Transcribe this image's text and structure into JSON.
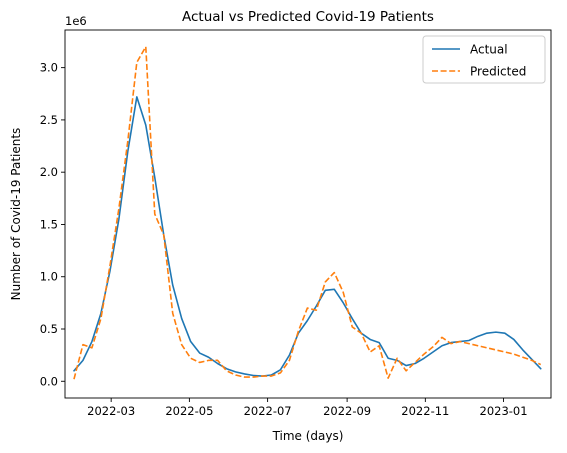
{
  "chart_data": {
    "type": "line",
    "title": "Actual vs Predicted Covid-19 Patients",
    "xlabel": "Time (days)",
    "ylabel": "Number of Covid-19 Patients",
    "y_scale_label": "1e6",
    "xlim": [
      "2022-01-24",
      "2023-02-07"
    ],
    "ylim": [
      -0.16,
      3.36
    ],
    "x_ticks": [
      "2022-03",
      "2022-05",
      "2022-07",
      "2022-09",
      "2022-11",
      "2023-01"
    ],
    "x_tick_dates": [
      "2022-03-01",
      "2022-05-01",
      "2022-07-01",
      "2022-09-01",
      "2022-11-01",
      "2023-01-01"
    ],
    "y_ticks": [
      "0.0",
      "0.5",
      "1.0",
      "1.5",
      "2.0",
      "2.5",
      "3.0"
    ],
    "y_tick_values": [
      0,
      0.5,
      1.0,
      1.5,
      2.0,
      2.5,
      3.0
    ],
    "grid": false,
    "legend_position": "top-right",
    "series": [
      {
        "name": "Actual",
        "color": "#1f77b4",
        "style": "solid",
        "points": [
          [
            "2022-01-31",
            0.1
          ],
          [
            "2022-02-07",
            0.2
          ],
          [
            "2022-02-14",
            0.38
          ],
          [
            "2022-02-21",
            0.65
          ],
          [
            "2022-02-28",
            1.05
          ],
          [
            "2022-03-07",
            1.55
          ],
          [
            "2022-03-14",
            2.2
          ],
          [
            "2022-03-21",
            2.72
          ],
          [
            "2022-03-28",
            2.45
          ],
          [
            "2022-04-04",
            1.95
          ],
          [
            "2022-04-11",
            1.4
          ],
          [
            "2022-04-18",
            0.92
          ],
          [
            "2022-04-25",
            0.6
          ],
          [
            "2022-05-02",
            0.38
          ],
          [
            "2022-05-09",
            0.27
          ],
          [
            "2022-05-16",
            0.23
          ],
          [
            "2022-05-23",
            0.17
          ],
          [
            "2022-05-30",
            0.12
          ],
          [
            "2022-06-06",
            0.09
          ],
          [
            "2022-06-13",
            0.07
          ],
          [
            "2022-06-20",
            0.055
          ],
          [
            "2022-06-27",
            0.05
          ],
          [
            "2022-07-04",
            0.06
          ],
          [
            "2022-07-11",
            0.11
          ],
          [
            "2022-07-18",
            0.25
          ],
          [
            "2022-07-25",
            0.46
          ],
          [
            "2022-08-01",
            0.58
          ],
          [
            "2022-08-08",
            0.72
          ],
          [
            "2022-08-15",
            0.87
          ],
          [
            "2022-08-22",
            0.88
          ],
          [
            "2022-08-29",
            0.75
          ],
          [
            "2022-09-05",
            0.6
          ],
          [
            "2022-09-12",
            0.46
          ],
          [
            "2022-09-19",
            0.4
          ],
          [
            "2022-09-26",
            0.37
          ],
          [
            "2022-10-03",
            0.22
          ],
          [
            "2022-10-10",
            0.2
          ],
          [
            "2022-10-17",
            0.15
          ],
          [
            "2022-10-24",
            0.17
          ],
          [
            "2022-10-31",
            0.22
          ],
          [
            "2022-11-07",
            0.28
          ],
          [
            "2022-11-14",
            0.34
          ],
          [
            "2022-11-21",
            0.37
          ],
          [
            "2022-11-28",
            0.38
          ],
          [
            "2022-12-05",
            0.39
          ],
          [
            "2022-12-12",
            0.43
          ],
          [
            "2022-12-19",
            0.46
          ],
          [
            "2022-12-26",
            0.47
          ],
          [
            "2023-01-02",
            0.46
          ],
          [
            "2023-01-09",
            0.4
          ],
          [
            "2023-01-16",
            0.3
          ],
          [
            "2023-01-23",
            0.21
          ],
          [
            "2023-01-30",
            0.12
          ]
        ]
      },
      {
        "name": "Predicted",
        "color": "#ff7f0e",
        "style": "dashed",
        "points": [
          [
            "2022-01-31",
            0.02
          ],
          [
            "2022-02-07",
            0.35
          ],
          [
            "2022-02-14",
            0.32
          ],
          [
            "2022-02-21",
            0.6
          ],
          [
            "2022-02-28",
            1.1
          ],
          [
            "2022-03-07",
            1.65
          ],
          [
            "2022-03-14",
            2.3
          ],
          [
            "2022-03-21",
            3.05
          ],
          [
            "2022-03-28",
            3.2
          ],
          [
            "2022-04-04",
            1.6
          ],
          [
            "2022-04-11",
            1.4
          ],
          [
            "2022-04-18",
            0.65
          ],
          [
            "2022-04-25",
            0.35
          ],
          [
            "2022-05-02",
            0.22
          ],
          [
            "2022-05-09",
            0.18
          ],
          [
            "2022-05-16",
            0.2
          ],
          [
            "2022-05-23",
            0.2
          ],
          [
            "2022-05-30",
            0.1
          ],
          [
            "2022-06-06",
            0.06
          ],
          [
            "2022-06-13",
            0.04
          ],
          [
            "2022-06-20",
            0.04
          ],
          [
            "2022-06-27",
            0.05
          ],
          [
            "2022-07-04",
            0.05
          ],
          [
            "2022-07-11",
            0.08
          ],
          [
            "2022-07-18",
            0.2
          ],
          [
            "2022-07-25",
            0.48
          ],
          [
            "2022-08-01",
            0.7
          ],
          [
            "2022-08-08",
            0.68
          ],
          [
            "2022-08-15",
            0.95
          ],
          [
            "2022-08-22",
            1.04
          ],
          [
            "2022-08-29",
            0.85
          ],
          [
            "2022-09-05",
            0.52
          ],
          [
            "2022-09-12",
            0.46
          ],
          [
            "2022-09-19",
            0.28
          ],
          [
            "2022-09-26",
            0.34
          ],
          [
            "2022-10-03",
            0.03
          ],
          [
            "2022-10-10",
            0.22
          ],
          [
            "2022-10-17",
            0.1
          ],
          [
            "2022-10-24",
            0.18
          ],
          [
            "2022-10-31",
            0.26
          ],
          [
            "2022-11-07",
            0.33
          ],
          [
            "2022-11-14",
            0.42
          ],
          [
            "2022-11-21",
            0.36
          ],
          [
            "2022-11-28",
            0.38
          ],
          [
            "2022-12-05",
            0.36
          ],
          [
            "2022-12-12",
            0.34
          ],
          [
            "2022-12-19",
            0.32
          ],
          [
            "2022-12-26",
            0.3
          ],
          [
            "2023-01-02",
            0.28
          ],
          [
            "2023-01-09",
            0.26
          ],
          [
            "2023-01-16",
            0.23
          ],
          [
            "2023-01-23",
            0.2
          ],
          [
            "2023-01-30",
            0.16
          ]
        ]
      }
    ]
  }
}
